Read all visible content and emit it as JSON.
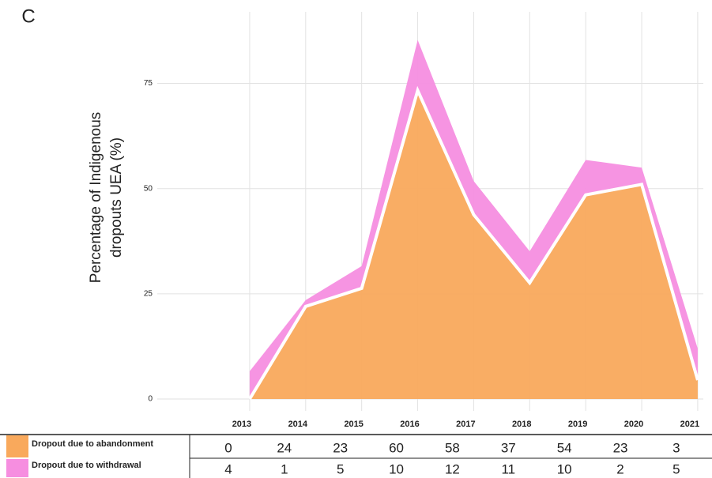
{
  "chart_data": {
    "type": "stacked_area",
    "panel_label": "C",
    "y_label": [
      "Percentage of Indigenous",
      "dropouts UEA (%)"
    ],
    "x": [
      2013,
      2014,
      2015,
      2016,
      2017,
      2018,
      2019,
      2020,
      2021
    ],
    "xlim": [
      2011.35,
      2021.1
    ],
    "ylim": [
      0,
      92
    ],
    "yticks": [
      0,
      25,
      50,
      75
    ],
    "grid": true,
    "series": [
      {
        "name": "Dropout due to abandonment",
        "color": "#f9a95c",
        "values": [
          0,
          22,
          26.3,
          73.3,
          43.8,
          27.6,
          48.5,
          51,
          4.5
        ],
        "counts": [
          0,
          24,
          23,
          60,
          58,
          37,
          54,
          23,
          3
        ]
      },
      {
        "name": "Dropout due to withdrawal",
        "color": "#f68ee0",
        "values": [
          6.6,
          1.5,
          5.3,
          12,
          8,
          7.5,
          8.3,
          4,
          7.5
        ],
        "counts": [
          4,
          1,
          5,
          10,
          12,
          11,
          10,
          2,
          5
        ]
      }
    ]
  }
}
